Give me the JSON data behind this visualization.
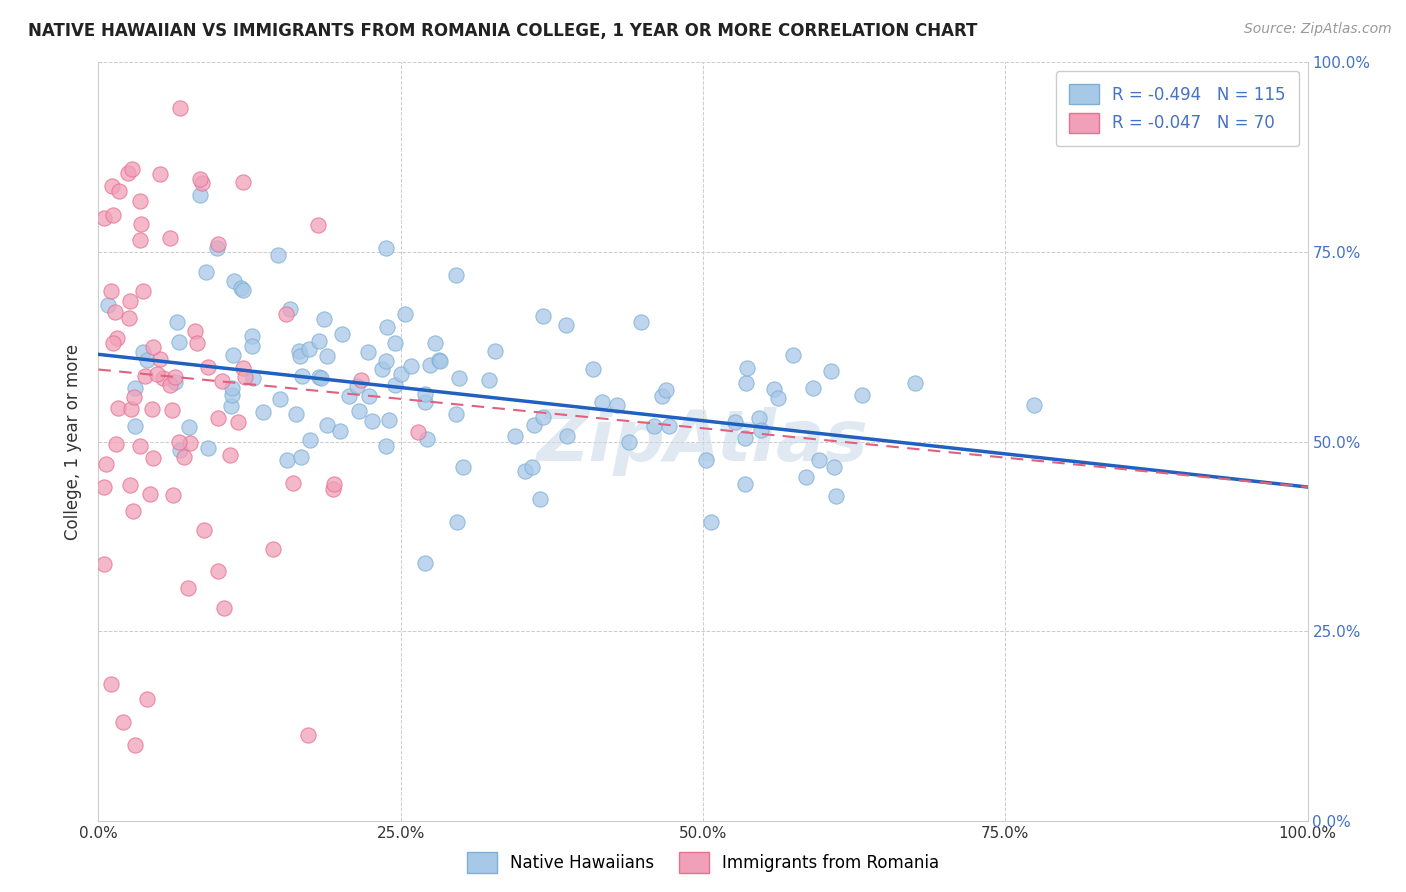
{
  "title": "NATIVE HAWAIIAN VS IMMIGRANTS FROM ROMANIA COLLEGE, 1 YEAR OR MORE CORRELATION CHART",
  "source_text": "Source: ZipAtlas.com",
  "ylabel": "College, 1 year or more",
  "xlim": [
    0.0,
    1.0
  ],
  "ylim": [
    0.0,
    1.0
  ],
  "x_ticks": [
    0.0,
    0.25,
    0.5,
    0.75,
    1.0
  ],
  "y_ticks": [
    0.0,
    0.25,
    0.5,
    0.75,
    1.0
  ],
  "x_tick_labels": [
    "0.0%",
    "25.0%",
    "50.0%",
    "75.0%",
    "100.0%"
  ],
  "y_tick_labels_right": [
    "0.0%",
    "25.0%",
    "50.0%",
    "75.0%",
    "100.0%"
  ],
  "blue_color": "#a8c8e8",
  "pink_color": "#f0a0b8",
  "blue_edge_color": "#7bafd4",
  "pink_edge_color": "#e87090",
  "blue_line_color": "#2060c0",
  "pink_line_color": "#e06080",
  "right_axis_color": "#4472c4",
  "watermark": "ZipAtlas",
  "R_blue": -0.494,
  "N_blue": 115,
  "R_pink": -0.047,
  "N_pink": 70,
  "blue_line_x0": 0.0,
  "blue_line_y0": 0.615,
  "blue_line_x1": 1.0,
  "blue_line_y1": 0.44,
  "pink_line_x0": 0.0,
  "pink_line_y0": 0.595,
  "pink_line_x1": 1.0,
  "pink_line_y1": 0.44
}
